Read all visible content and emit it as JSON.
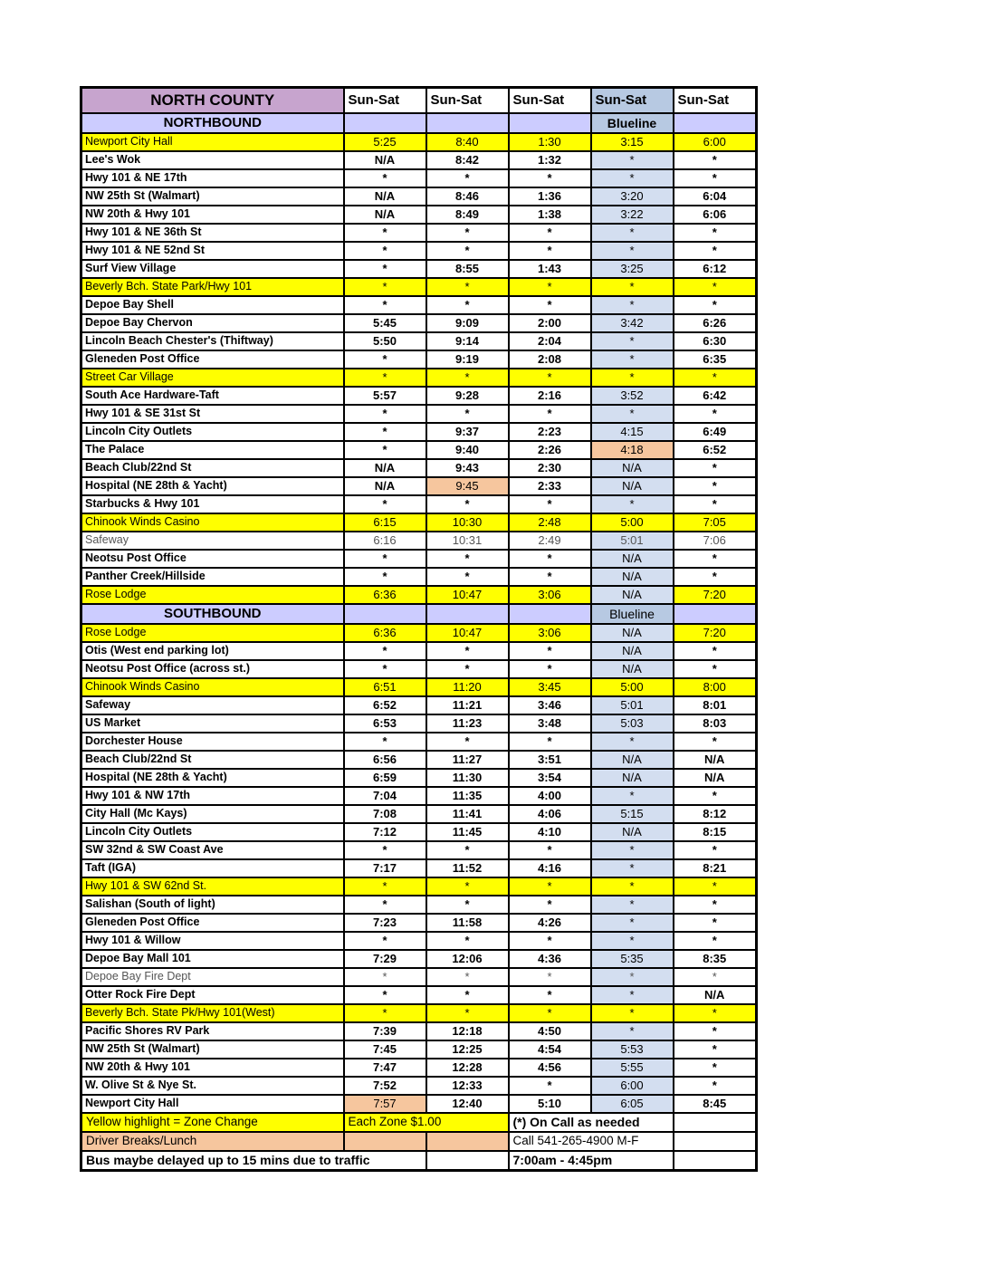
{
  "header": {
    "title": "NORTH COUNTY",
    "day_labels": [
      "Sun-Sat",
      "Sun-Sat",
      "Sun-Sat",
      "Sun-Sat",
      "Sun-Sat"
    ]
  },
  "colors": {
    "title_bg": "#C7A4CE",
    "section_bg": "#CCCCFF",
    "blueline_header_bg": "#B7C9E2",
    "blueline_cell_bg": "#D3DEF0",
    "zone_highlight": "#FFFF00",
    "break_highlight": "#F6C69E"
  },
  "sections": [
    {
      "name": "NORTHBOUND",
      "blueline_label": "Blueline",
      "blueline_bold": true,
      "rows": [
        {
          "stop": "Newport City Hall",
          "bg": "yellow",
          "times": [
            "5:25",
            "8:40",
            "1:30",
            "3:15",
            "6:00"
          ]
        },
        {
          "stop": "Lee's Wok",
          "times": [
            "N/A",
            "8:42",
            "1:32",
            "*",
            "*"
          ]
        },
        {
          "stop": "Hwy 101 & NE 17th",
          "times": [
            "*",
            "*",
            "*",
            "*",
            "*"
          ]
        },
        {
          "stop": "NW 25th St (Walmart)",
          "times": [
            "N/A",
            "8:46",
            "1:36",
            "3:20",
            "6:04"
          ]
        },
        {
          "stop": "NW 20th & Hwy 101",
          "times": [
            "N/A",
            "8:49",
            "1:38",
            "3:22",
            "6:06"
          ]
        },
        {
          "stop": "Hwy 101 & NE 36th St",
          "times": [
            "*",
            "*",
            "*",
            "*",
            "*"
          ]
        },
        {
          "stop": "Hwy 101 & NE 52nd St",
          "times": [
            "*",
            "*",
            "*",
            "*",
            "*"
          ]
        },
        {
          "stop": "Surf View Village",
          "times": [
            "*",
            "8:55",
            "1:43",
            "3:25",
            "6:12"
          ]
        },
        {
          "stop": "Beverly Bch. State Park/Hwy 101",
          "bg": "yellow",
          "times": [
            "*",
            "*",
            "*",
            "*",
            "*"
          ]
        },
        {
          "stop": "Depoe Bay Shell",
          "times": [
            "*",
            "*",
            "*",
            "*",
            "*"
          ]
        },
        {
          "stop": "Depoe Bay Chervon",
          "times": [
            "5:45",
            "9:09",
            "2:00",
            "3:42",
            "6:26"
          ]
        },
        {
          "stop": "Lincoln Beach Chester's (Thiftway)",
          "times": [
            "5:50",
            "9:14",
            "2:04",
            "*",
            "6:30"
          ]
        },
        {
          "stop": "Gleneden Post Office",
          "times": [
            "*",
            "9:19",
            "2:08",
            "*",
            "6:35"
          ]
        },
        {
          "stop": "Street Car Village",
          "bg": "yellow",
          "times": [
            "*",
            "*",
            "*",
            "*",
            "*"
          ]
        },
        {
          "stop": "South Ace Hardware-Taft",
          "times": [
            "5:57",
            "9:28",
            "2:16",
            "3:52",
            "6:42"
          ]
        },
        {
          "stop": "Hwy 101 & SE 31st St",
          "times": [
            "*",
            "*",
            "*",
            "*",
            "*"
          ]
        },
        {
          "stop": "Lincoln City Outlets",
          "times": [
            "*",
            "9:37",
            "2:23",
            "4:15",
            "6:49"
          ]
        },
        {
          "stop": "The Palace",
          "times": [
            "*",
            "9:40",
            "2:26",
            "4:18",
            "6:52"
          ],
          "cells": {
            "3": "peach"
          }
        },
        {
          "stop": "Beach Club/22nd St",
          "times": [
            "N/A",
            "9:43",
            "2:30",
            "N/A",
            "*"
          ]
        },
        {
          "stop": "Hospital (NE 28th & Yacht)",
          "times": [
            "N/A",
            "9:45",
            "2:33",
            "N/A",
            "*"
          ],
          "cells": {
            "1": "peach"
          }
        },
        {
          "stop": "Starbucks & Hwy 101",
          "times": [
            "*",
            "*",
            "*",
            "*",
            "*"
          ]
        },
        {
          "stop": "Chinook Winds Casino",
          "bg": "yellow",
          "times": [
            "6:15",
            "10:30",
            "2:48",
            "5:00",
            "7:05"
          ]
        },
        {
          "stop": "Safeway",
          "muted": true,
          "times": [
            "6:16",
            "10:31",
            "2:49",
            "5:01",
            "7:06"
          ]
        },
        {
          "stop": "Neotsu Post Office",
          "times": [
            "*",
            "*",
            "*",
            "N/A",
            "*"
          ]
        },
        {
          "stop": "Panther Creek/Hillside",
          "times": [
            "*",
            "*",
            "*",
            "N/A",
            "*"
          ]
        },
        {
          "stop": "Rose Lodge",
          "bg": "yellow",
          "times": [
            "6:36",
            "10:47",
            "3:06",
            "N/A",
            "7:20"
          ],
          "cells": {
            "3": "blue"
          }
        }
      ]
    },
    {
      "name": "SOUTHBOUND",
      "blueline_label": "Blueline",
      "blueline_bold": false,
      "rows": [
        {
          "stop": "Rose Lodge",
          "bg": "yellow",
          "times": [
            "6:36",
            "10:47",
            "3:06",
            "N/A",
            "7:20"
          ],
          "cells": {
            "3": "blue"
          }
        },
        {
          "stop": "Otis (West end parking lot)",
          "times": [
            "*",
            "*",
            "*",
            "N/A",
            "*"
          ]
        },
        {
          "stop": "Neotsu Post Office (across st.)",
          "times": [
            "*",
            "*",
            "*",
            "N/A",
            "*"
          ]
        },
        {
          "stop": "Chinook Winds Casino",
          "bg": "yellow",
          "times": [
            "6:51",
            "11:20",
            "3:45",
            "5:00",
            "8:00"
          ]
        },
        {
          "stop": "Safeway",
          "times": [
            "6:52",
            "11:21",
            "3:46",
            "5:01",
            "8:01"
          ]
        },
        {
          "stop": "US Market",
          "times": [
            "6:53",
            "11:23",
            "3:48",
            "5:03",
            "8:03"
          ]
        },
        {
          "stop": "Dorchester House",
          "times": [
            "*",
            "*",
            "*",
            "*",
            "*"
          ]
        },
        {
          "stop": "Beach Club/22nd St",
          "times": [
            "6:56",
            "11:27",
            "3:51",
            "N/A",
            "N/A"
          ]
        },
        {
          "stop": "Hospital (NE 28th & Yacht)",
          "times": [
            "6:59",
            "11:30",
            "3:54",
            "N/A",
            "N/A"
          ]
        },
        {
          "stop": "Hwy 101 & NW 17th",
          "times": [
            "7:04",
            "11:35",
            "4:00",
            "*",
            "*"
          ]
        },
        {
          "stop": "City Hall (Mc Kays)",
          "times": [
            "7:08",
            "11:41",
            "4:06",
            "5:15",
            "8:12"
          ]
        },
        {
          "stop": "Lincoln City Outlets",
          "times": [
            "7:12",
            "11:45",
            "4:10",
            "N/A",
            "8:15"
          ]
        },
        {
          "stop": "SW 32nd & SW Coast Ave",
          "times": [
            "*",
            "*",
            "*",
            "*",
            "*"
          ]
        },
        {
          "stop": "Taft (IGA)",
          "times": [
            "7:17",
            "11:52",
            "4:16",
            "*",
            "8:21"
          ]
        },
        {
          "stop": "Hwy 101 & SW 62nd St.",
          "bg": "yellow",
          "times": [
            "*",
            "*",
            "*",
            "*",
            "*"
          ]
        },
        {
          "stop": "Salishan (South of light)",
          "times": [
            "*",
            "*",
            "*",
            "*",
            "*"
          ]
        },
        {
          "stop": "Gleneden Post Office",
          "times": [
            "7:23",
            "11:58",
            "4:26",
            "*",
            "*"
          ]
        },
        {
          "stop": "Hwy 101 & Willow",
          "times": [
            "*",
            "*",
            "*",
            "*",
            "*"
          ]
        },
        {
          "stop": "Depoe Bay Mall 101",
          "times": [
            "7:29",
            "12:06",
            "4:36",
            "5:35",
            "8:35"
          ]
        },
        {
          "stop": "Depoe Bay Fire Dept",
          "muted": true,
          "times": [
            "*",
            "*",
            "*",
            "*",
            "*"
          ]
        },
        {
          "stop": "Otter Rock Fire Dept",
          "times": [
            "*",
            "*",
            "*",
            "*",
            "N/A"
          ]
        },
        {
          "stop": "Beverly Bch. State Pk/Hwy 101(West)",
          "bg": "yellow",
          "times": [
            "*",
            "*",
            "*",
            "*",
            "*"
          ]
        },
        {
          "stop": "Pacific Shores RV Park",
          "times": [
            "7:39",
            "12:18",
            "4:50",
            "*",
            "*"
          ]
        },
        {
          "stop": "NW 25th St (Walmart)",
          "times": [
            "7:45",
            "12:25",
            "4:54",
            "5:53",
            "*"
          ]
        },
        {
          "stop": "NW 20th & Hwy 101",
          "times": [
            "7:47",
            "12:28",
            "4:56",
            "5:55",
            "*"
          ]
        },
        {
          "stop": "W. Olive St & Nye St.",
          "times": [
            "7:52",
            "12:33",
            "*",
            "6:00",
            "*"
          ]
        },
        {
          "stop": "Newport City Hall",
          "times": [
            "7:57",
            "12:40",
            "5:10",
            "6:05",
            "8:45"
          ],
          "cells": {
            "0": "peach"
          }
        }
      ]
    }
  ],
  "footer": {
    "rows": [
      {
        "label": "Yellow highlight = Zone Change",
        "fare": "Each Zone $1.00",
        "note": "(*) On Call as needed"
      },
      {
        "label": "Driver Breaks/Lunch",
        "note": "Call 541-265-4900 M-F"
      },
      {
        "label": "Bus maybe delayed up to 15 mins due to traffic",
        "note": "7:00am - 4:45pm"
      }
    ]
  }
}
